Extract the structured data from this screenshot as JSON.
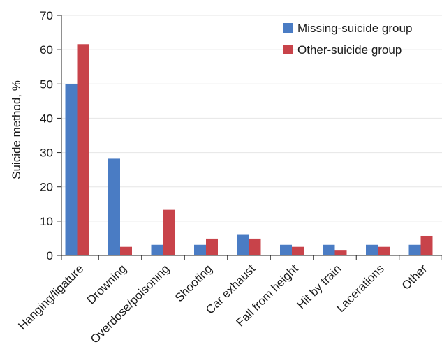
{
  "chart_data": {
    "type": "bar",
    "title": "",
    "xlabel": "",
    "ylabel": "Suicide method, %",
    "ylim": [
      0,
      70
    ],
    "yticks": [
      0,
      10,
      20,
      30,
      40,
      50,
      60,
      70
    ],
    "grid": true,
    "legend_position": "top-right",
    "categories": [
      "Hanging/ligature",
      "Drowning",
      "Overdose/poisoning",
      "Shooting",
      "Car exhaust",
      "Fall from height",
      "Hit by train",
      "Lacerations",
      "Other"
    ],
    "series": [
      {
        "name": "Missing-suicide group",
        "color": "#4a7cc4",
        "values": [
          50,
          28.2,
          3.1,
          3.1,
          6.2,
          3.1,
          3.1,
          3.1,
          3.1
        ]
      },
      {
        "name": "Other-suicide group",
        "color": "#c8434a",
        "values": [
          61.6,
          2.5,
          13.3,
          4.9,
          4.9,
          2.5,
          1.6,
          2.5,
          5.7
        ]
      }
    ]
  }
}
